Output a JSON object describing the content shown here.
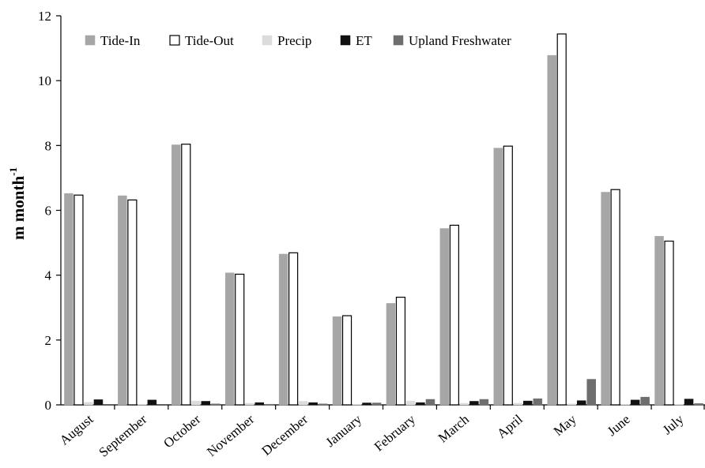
{
  "chart_data": {
    "type": "bar",
    "ylabel": "m month",
    "ylabel_superscript": "-1",
    "ylim": [
      0,
      12
    ],
    "yticks": [
      "0",
      "2",
      "4",
      "6",
      "8",
      "10",
      "12"
    ],
    "grid": false,
    "legend_position": "top",
    "categories": [
      "August",
      "September",
      "October",
      "November",
      "December",
      "January",
      "February",
      "March",
      "April",
      "May",
      "June",
      "July"
    ],
    "series": [
      {
        "name": "Tide-In",
        "color": "#a6a6a6",
        "stroke": "#a6a6a6",
        "values": [
          6.52,
          6.45,
          8.02,
          4.07,
          4.65,
          2.72,
          3.13,
          5.44,
          7.92,
          10.78,
          6.56,
          5.2
        ]
      },
      {
        "name": "Tide-Out",
        "color": "#ffffff",
        "stroke": "#000000",
        "values": [
          6.47,
          6.32,
          8.04,
          4.03,
          4.69,
          2.75,
          3.32,
          5.54,
          7.98,
          11.44,
          6.64,
          5.05
        ]
      },
      {
        "name": "Precip",
        "color": "#dcdcdc",
        "stroke": "#dcdcdc",
        "values": [
          0.08,
          0.02,
          0.12,
          0.05,
          0.11,
          0.02,
          0.12,
          0.05,
          0.05,
          0.03,
          0.02,
          0.02
        ]
      },
      {
        "name": "ET",
        "color": "#111111",
        "stroke": "#111111",
        "values": [
          0.16,
          0.15,
          0.11,
          0.07,
          0.07,
          0.06,
          0.07,
          0.11,
          0.12,
          0.13,
          0.15,
          0.18
        ]
      },
      {
        "name": "Upland Freshwater",
        "color": "#6e6e6e",
        "stroke": "#6e6e6e",
        "values": [
          0.0,
          0.0,
          0.03,
          0.02,
          0.03,
          0.06,
          0.17,
          0.17,
          0.19,
          0.79,
          0.24,
          0.04
        ]
      }
    ]
  }
}
